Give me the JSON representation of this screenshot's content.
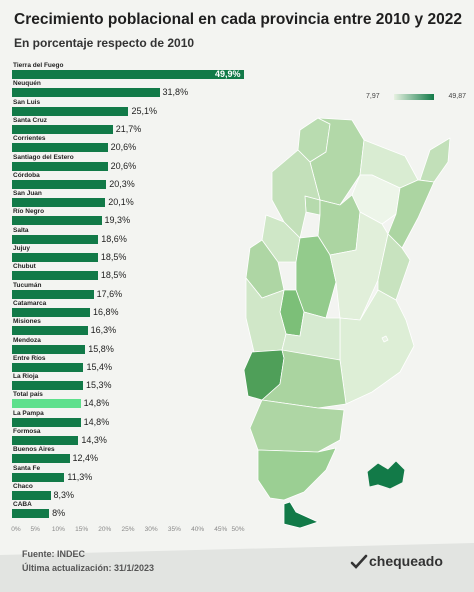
{
  "header": {
    "title": "Crecimiento poblacional en cada provincia entre 2010 y 2022",
    "subtitle": "En porcentaje respecto de 2010"
  },
  "chart_data": {
    "type": "bar",
    "orientation": "horizontal",
    "categories": [
      "Tierra del Fuego",
      "Neuquén",
      "San Luis",
      "Santa Cruz",
      "Corrientes",
      "Santiago del Estero",
      "Córdoba",
      "San Juan",
      "Río Negro",
      "Salta",
      "Jujuy",
      "Chubut",
      "Tucumán",
      "Catamarca",
      "Misiones",
      "Mendoza",
      "Entre Ríos",
      "La Rioja",
      "Total país",
      "La Pampa",
      "Formosa",
      "Buenos Aires",
      "Santa Fe",
      "Chaco",
      "CABA"
    ],
    "values": [
      49.9,
      31.8,
      25.1,
      21.7,
      20.6,
      20.6,
      20.3,
      20.1,
      19.3,
      18.6,
      18.5,
      18.5,
      17.6,
      16.8,
      16.3,
      15.8,
      15.4,
      15.3,
      14.8,
      14.8,
      14.3,
      12.4,
      11.3,
      8.3,
      8.0
    ],
    "value_labels": [
      "49,9%",
      "31,8%",
      "25,1%",
      "21,7%",
      "20,6%",
      "20,6%",
      "20,3%",
      "20,1%",
      "19,3%",
      "18,6%",
      "18,5%",
      "18,5%",
      "17,6%",
      "16,8%",
      "16,3%",
      "15,8%",
      "15,4%",
      "15,3%",
      "14,8%",
      "14,8%",
      "14,3%",
      "12,4%",
      "11,3%",
      "8,3%",
      "8%"
    ],
    "highlight_category": "Total país",
    "xlim": [
      0,
      50
    ],
    "x_ticks": [
      "0%",
      "5%",
      "10%",
      "15%",
      "20%",
      "25%",
      "30%",
      "35%",
      "40%",
      "45%",
      "50%"
    ],
    "bar_color": "#127a48",
    "highlight_color": "#5ee08c"
  },
  "map_legend": {
    "min": "7,97",
    "max": "49,87",
    "color_low": "#e6f1e1",
    "color_high": "#127a48"
  },
  "footer": {
    "source": "Fuente: INDEC",
    "updated": "Última actualización: 31/1/2023",
    "logo_text": "chequeado"
  }
}
